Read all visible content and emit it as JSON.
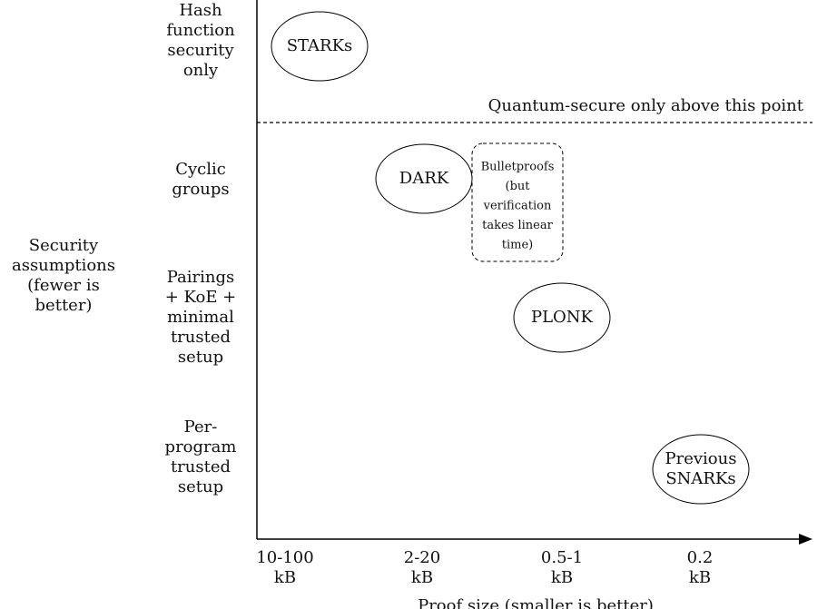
{
  "y_axis": {
    "title": [
      "Security",
      "assumptions",
      "(fewer is",
      "better)"
    ],
    "levels": [
      [
        "Hash",
        "function",
        "security",
        "only"
      ],
      [
        "Cyclic",
        "groups"
      ],
      [
        "Pairings",
        "+ KoE +",
        "minimal",
        "trusted",
        "setup"
      ],
      [
        "Per-",
        "program",
        "trusted",
        "setup"
      ]
    ]
  },
  "x_axis": {
    "title": "Proof size (smaller is better)",
    "levels": [
      [
        "10-100",
        "kB"
      ],
      [
        "2-20",
        "kB"
      ],
      [
        "0.5-1",
        "kB"
      ],
      [
        "0.2",
        "kB"
      ]
    ]
  },
  "threshold": "Quantum-secure only above this point",
  "nodes": [
    {
      "label": [
        "STARKs"
      ]
    },
    {
      "label": [
        "DARK"
      ]
    },
    {
      "label": [
        "PLONK"
      ]
    },
    {
      "label": [
        "Previous",
        "SNARKs"
      ]
    },
    {
      "label": [
        "Bulletproofs",
        "(but",
        "verification",
        "takes linear",
        "time)"
      ]
    }
  ]
}
